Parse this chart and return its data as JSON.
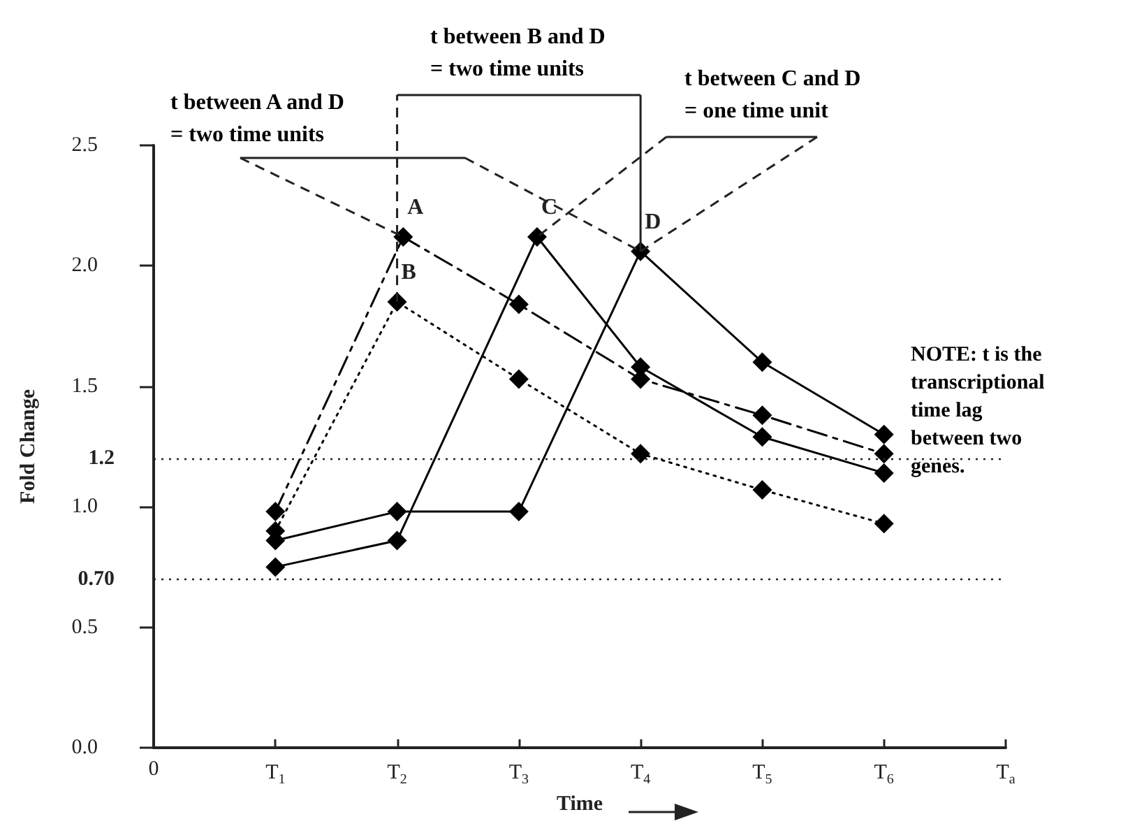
{
  "chart_data": {
    "type": "line",
    "xlabel": "Time",
    "ylabel": "Fold Change",
    "xlim": [
      0,
      7
    ],
    "xticks": [
      0,
      {
        "value": 1,
        "label": "T$_{1}$"
      },
      {
        "value": 2,
        "label": "T$_{2}$"
      },
      {
        "value": 3,
        "label": "T$_{3}$"
      },
      {
        "value": 4,
        "label": "T$_{4}$"
      },
      {
        "value": 5,
        "label": "T$_{5}$"
      },
      {
        "value": 6,
        "label": "T$_{6}$"
      },
      {
        "value": 7,
        "label": "T$_{a}$"
      }
    ],
    "ylim": [
      0,
      2.5
    ],
    "yticks": [
      {
        "value": 0,
        "label": "0.0"
      },
      0.5,
      {
        "value": 1,
        "label": "1.0"
      },
      1.5,
      {
        "value": 2,
        "label": "2.0"
      },
      2.5
    ],
    "series": [
      {
        "name": "A",
        "color": "#000000",
        "line_style": "dashed",
        "x": [
          1,
          2.05,
          3,
          4,
          5,
          6
        ],
        "values": [
          0.98,
          2.12,
          1.84,
          1.53,
          1.38,
          1.22
        ]
      },
      {
        "name": "B",
        "color": "#000000",
        "line_style": "dotted",
        "x": [
          1,
          2,
          3,
          4,
          5,
          6
        ],
        "values": [
          0.9,
          1.85,
          1.53,
          1.22,
          1.07,
          0.93
        ]
      },
      {
        "name": "C",
        "color": "#000000",
        "line_style": "solid",
        "x": [
          1,
          2,
          3.15,
          4,
          5,
          6
        ],
        "values": [
          0.75,
          0.86,
          2.12,
          1.58,
          1.29,
          1.14
        ]
      },
      {
        "name": "D",
        "color": "#000000",
        "line_style": "solid",
        "x": [
          1,
          2,
          3,
          4,
          5,
          6
        ],
        "values": [
          0.86,
          0.98,
          0.98,
          2.06,
          1.6,
          1.3
        ]
      }
    ],
    "marker": "diamond",
    "grid": false,
    "ref_lines": [
      {
        "axis": "y",
        "value": 1.2,
        "label": "1.2",
        "line_style": "dotted"
      },
      {
        "axis": "y",
        "value": 0.7,
        "label": "0.70",
        "line_style": "dotted"
      }
    ],
    "annotations": [
      {
        "text": "t between A and D\n= two time units",
        "x": 2.05,
        "y": 2.12
      },
      "t between B and D\n= two time units",
      {
        "text": "t between C and D\n= one time unit",
        "x": 4,
        "y": 2.06
      },
      "NOTE: t is the\ntranscriptional\ntime lag\nbetween two\ngenes."
    ]
  }
}
